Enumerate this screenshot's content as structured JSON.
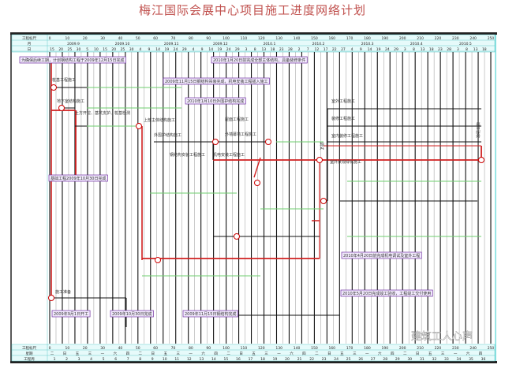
{
  "title": "梅江国际会展中心项目施工进度网络计划",
  "header": {
    "row_labels": [
      "工程标尺",
      "月",
      "日"
    ],
    "scale": [
      "0",
      "10",
      "20",
      "30",
      "40",
      "50",
      "60",
      "70",
      "80",
      "90",
      "100",
      "110",
      "120",
      "130",
      "140",
      "150",
      "160",
      "170",
      "180",
      "190",
      "200",
      "210",
      "220",
      "230",
      "240",
      "250"
    ],
    "months": [
      "2009.9",
      "2009.10",
      "2009.11",
      "2009.12",
      "2010.1",
      "2010.2",
      "2010.3",
      "2010.4",
      "2010.5"
    ],
    "days": [
      "15",
      "20",
      "25",
      "30",
      "5",
      "10",
      "15",
      "20",
      "25",
      "30",
      "4",
      "9",
      "14",
      "19",
      "24",
      "29",
      "4",
      "9",
      "14",
      "19",
      "24",
      "29",
      "3",
      "8",
      "13",
      "18",
      "23",
      "28",
      "2",
      "7",
      "12",
      "17",
      "22",
      "27",
      "4",
      "9",
      "14",
      "19",
      "24",
      "29",
      "3",
      "8",
      "13",
      "18",
      "23",
      "28",
      "3",
      "8",
      "13",
      "18"
    ]
  },
  "footer": {
    "row_labels": [
      "工程标尺",
      "星期",
      "工程周"
    ],
    "weekdays": [
      "二",
      "日",
      "五",
      "三",
      "一",
      "六",
      "四",
      "二",
      "日",
      "五",
      "三",
      "一",
      "六",
      "四",
      "二",
      "日",
      "五",
      "三",
      "一",
      "六",
      "四",
      "二",
      "日",
      "五",
      "三",
      "一",
      "六",
      "四",
      "二",
      "日",
      "五",
      "三",
      "一",
      "六",
      "四"
    ],
    "weeks": [
      "1",
      "2",
      "3",
      "4",
      "5",
      "6",
      "7",
      "8",
      "9",
      "10",
      "11",
      "12",
      "13",
      "14",
      "15",
      "16",
      "17",
      "18",
      "19",
      "20",
      "21",
      "22",
      "23",
      "24",
      "25",
      "26",
      "27",
      "28",
      "29",
      "30",
      "31",
      "32",
      "33",
      "34",
      "35",
      "36"
    ]
  },
  "annotations": [
    "为确保后续工期，计划钢结构工程于2009年12月15日完成",
    "2010年1月20日前完成全部主体结构，具备装修条件",
    "2009年11月15日钢结构吊装完成，机电安装工程插入施工",
    "2010年1月10日外围护结构完成",
    "基础工程2009年10月30日完成",
    "2010年4月20日前完成机电调试及室外工程",
    "2010年5月20日完成竣工验收，工程竣工交付使用",
    "2009年9月1日开工",
    "2009年10月30日完成",
    "2009年11月15日钢结构完成"
  ],
  "tasks": [
    "桩基工程施工",
    "地下室结构施工",
    "土方开挖、基坑支护、桩基检测",
    "上部主体结构施工",
    "外围护结构施工",
    "屋面工程施工",
    "外墙幕墙工程施工",
    "钢结构安装工程施工",
    "机电安装工程施工",
    "室外工程施工",
    "装修工程施工",
    "室内装修工程施工",
    "室外景观绿化施工",
    "调试",
    "竣工验收",
    "施工准备"
  ],
  "watermark": "建筑工人心声",
  "colors": {
    "title": "#c0504d",
    "critical": "#d02020",
    "float": "#6fcf6f",
    "annotation": "#7030a0",
    "header": "#e6fafa"
  }
}
